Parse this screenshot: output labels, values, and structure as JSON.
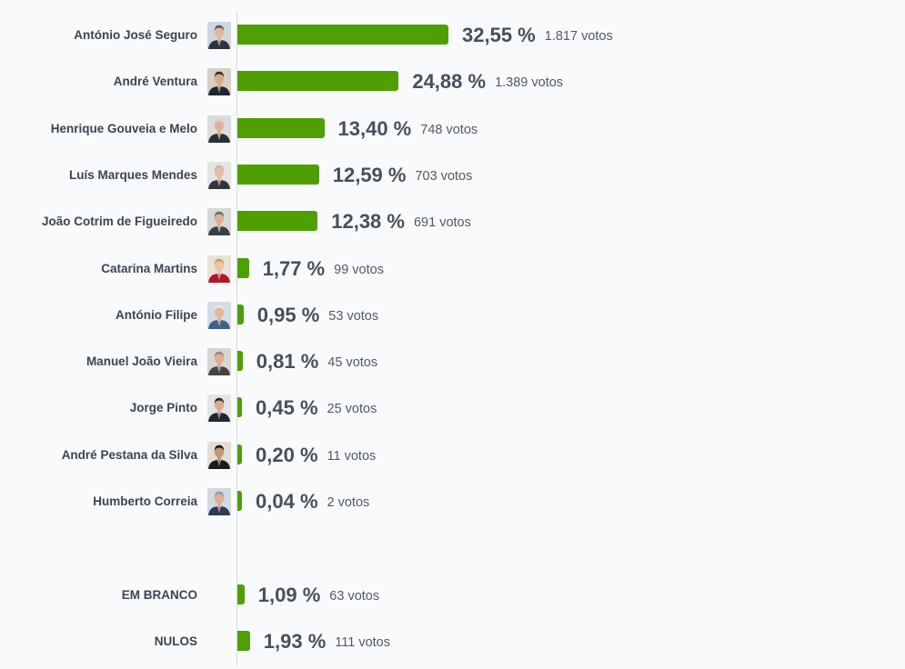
{
  "chart_data": {
    "type": "bar",
    "orientation": "horizontal",
    "bar_color": "#4e9f04",
    "percent_unit": "%",
    "votes_unit": "votos",
    "candidates": [
      {
        "name": "António José Seguro",
        "percent": 32.55,
        "percent_label": "32,55",
        "votes_label": "1.817",
        "photo": "portrait-icon"
      },
      {
        "name": "André Ventura",
        "percent": 24.88,
        "percent_label": "24,88",
        "votes_label": "1.389",
        "photo": "portrait-icon"
      },
      {
        "name": "Henrique Gouveia e Melo",
        "percent": 13.4,
        "percent_label": "13,40",
        "votes_label": "748",
        "photo": "portrait-icon"
      },
      {
        "name": "Luís Marques Mendes",
        "percent": 12.59,
        "percent_label": "12,59",
        "votes_label": "703",
        "photo": "portrait-icon"
      },
      {
        "name": "João Cotrim de Figueiredo",
        "percent": 12.38,
        "percent_label": "12,38",
        "votes_label": "691",
        "photo": "portrait-icon"
      },
      {
        "name": "Catarina Martins",
        "percent": 1.77,
        "percent_label": "1,77",
        "votes_label": "99",
        "photo": "portrait-icon"
      },
      {
        "name": "António Filipe",
        "percent": 0.95,
        "percent_label": "0,95",
        "votes_label": "53",
        "photo": "portrait-icon"
      },
      {
        "name": "Manuel João Vieira",
        "percent": 0.81,
        "percent_label": "0,81",
        "votes_label": "45",
        "photo": "portrait-icon"
      },
      {
        "name": "Jorge Pinto",
        "percent": 0.45,
        "percent_label": "0,45",
        "votes_label": "25",
        "photo": "portrait-icon"
      },
      {
        "name": "André Pestana da Silva",
        "percent": 0.2,
        "percent_label": "0,20",
        "votes_label": "11",
        "photo": "portrait-icon"
      },
      {
        "name": "Humberto Correia",
        "percent": 0.04,
        "percent_label": "0,04",
        "votes_label": "2",
        "photo": "portrait-icon"
      }
    ],
    "others": [
      {
        "name": "EM BRANCO",
        "percent": 1.09,
        "percent_label": "1,09",
        "votes_label": "63"
      },
      {
        "name": "NULOS",
        "percent": 1.93,
        "percent_label": "1,93",
        "votes_label": "111"
      }
    ]
  }
}
